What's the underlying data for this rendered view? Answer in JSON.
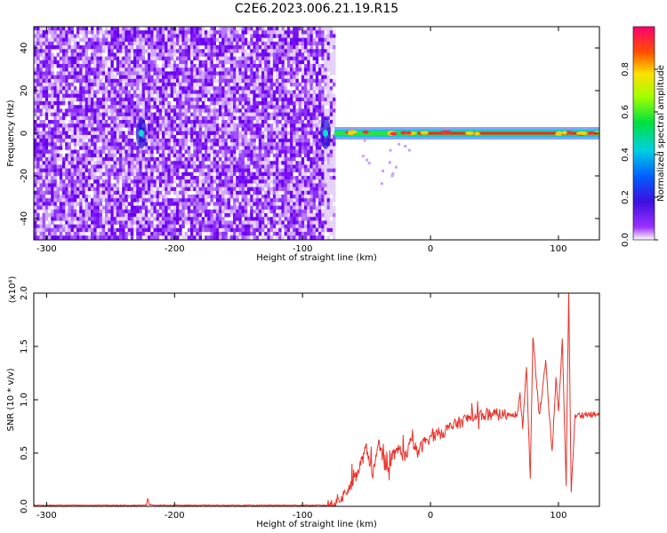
{
  "title": "C2E6.2023.006.21.19.R15",
  "chart_data": [
    {
      "type": "heatmap",
      "xlabel": "Height of straight line (km)",
      "ylabel": "Frequency (Hz)",
      "xlim": [
        -310,
        132
      ],
      "ylim": [
        -50,
        50
      ],
      "xticks": [
        -300,
        -200,
        -100,
        0,
        100
      ],
      "yticks": [
        -40,
        -20,
        0,
        20,
        40
      ],
      "colorbar": {
        "label": "Normalized spectral amplitude",
        "range": [
          0.0,
          1.0
        ],
        "ticks": [
          0.0,
          0.2,
          0.4,
          0.6,
          0.8
        ]
      },
      "features": {
        "noise_region_x": [
          -310,
          -75
        ],
        "carrier_line_frequency": 0,
        "carrier_line_x": [
          -75,
          132
        ],
        "bright_spots_x": [
          -226,
          -82
        ]
      }
    },
    {
      "type": "line",
      "xlabel": "Height of straight line (km)",
      "ylabel": "SNR (10 * v/v)",
      "scale_label": "(x10⁴)",
      "xlim": [
        -310,
        132
      ],
      "ylim": [
        0.0,
        2.0
      ],
      "xticks": [
        -300,
        -200,
        -100,
        0,
        100
      ],
      "yticks": [
        0.0,
        0.5,
        1.0,
        1.5,
        2.0
      ],
      "ytick_labels": [
        "0.0",
        "0.5",
        "1.0",
        "1.5",
        "2.0"
      ],
      "series": [
        {
          "color": "#e8322a",
          "x": [
            -310,
            -250,
            -222,
            -221,
            -220,
            -215,
            -150,
            -100,
            -80,
            -70,
            -60,
            -55,
            -50,
            -45,
            -40,
            -35,
            -30,
            -25,
            -20,
            -15,
            -10,
            -5,
            0,
            10,
            20,
            30,
            40,
            50,
            60,
            65,
            68,
            70,
            72,
            75,
            78,
            80,
            85,
            90,
            95,
            98,
            100,
            103,
            106,
            108,
            110,
            113,
            120,
            132
          ],
          "y": [
            0.01,
            0.01,
            0.01,
            0.08,
            0.02,
            0.01,
            0.01,
            0.01,
            0.01,
            0.07,
            0.22,
            0.38,
            0.55,
            0.3,
            0.6,
            0.3,
            0.42,
            0.55,
            0.45,
            0.62,
            0.5,
            0.6,
            0.65,
            0.7,
            0.77,
            0.83,
            0.86,
            0.86,
            0.86,
            0.87,
            0.86,
            1.05,
            0.75,
            1.3,
            0.25,
            1.6,
            0.85,
            1.35,
            0.5,
            1.2,
            0.9,
            1.55,
            0.2,
            2.0,
            0.15,
            0.85,
            0.86,
            0.86
          ]
        }
      ]
    }
  ]
}
